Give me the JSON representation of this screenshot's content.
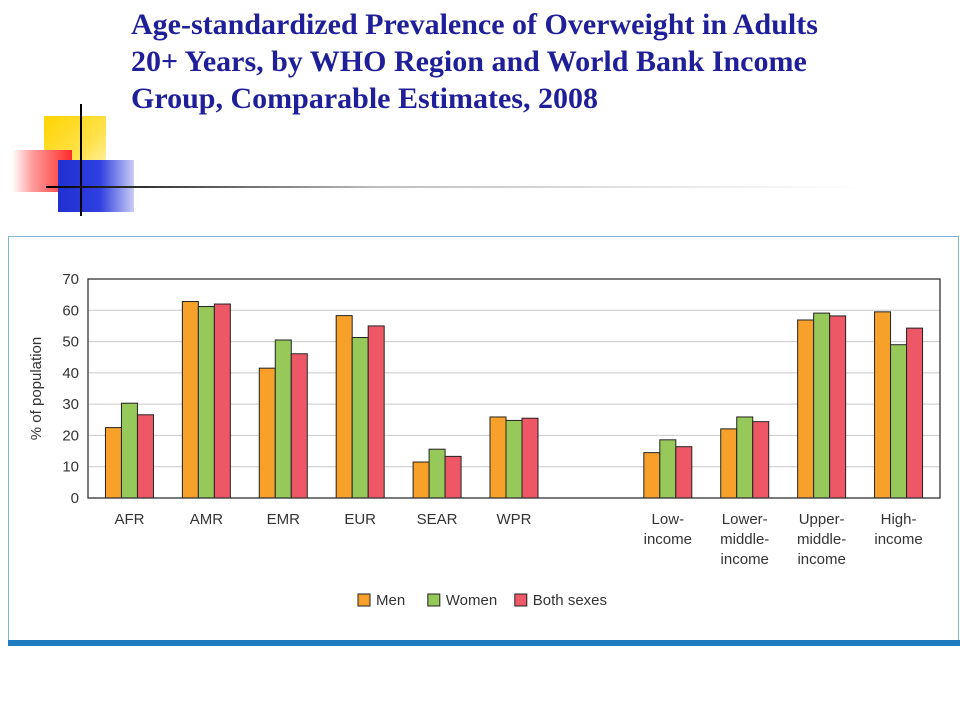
{
  "slide": {
    "title": "Age-standardized Prevalence of Overweight in Adults 20+ Years, by WHO Region and World Bank Income Group, Comparable Estimates, 2008"
  },
  "chart_data": {
    "type": "bar",
    "title": "",
    "ylabel": "% of population",
    "xlabel": "",
    "ylim": [
      0,
      70
    ],
    "yticks": [
      0,
      10,
      20,
      30,
      40,
      50,
      60,
      70
    ],
    "grid": true,
    "legend_position": "bottom-center",
    "categories": [
      [
        "AFR"
      ],
      [
        "AMR"
      ],
      [
        "EMR"
      ],
      [
        "EUR"
      ],
      [
        "SEAR"
      ],
      [
        "WPR"
      ],
      [],
      [
        "Low-",
        "income"
      ],
      [
        "Lower-",
        "middle-",
        "income"
      ],
      [
        "Upper-",
        "middle-",
        "income"
      ],
      [
        "High-",
        "income"
      ]
    ],
    "series": [
      {
        "name": "Men",
        "color": "#f7a12b",
        "values": [
          22.5,
          62.8,
          41.5,
          58.3,
          11.5,
          25.9,
          null,
          14.5,
          22.1,
          56.9,
          59.5
        ]
      },
      {
        "name": "Women",
        "color": "#96c85a",
        "values": [
          30.3,
          61.2,
          50.5,
          51.3,
          15.6,
          24.8,
          null,
          18.6,
          25.9,
          59.1,
          49.0
        ]
      },
      {
        "name": "Both sexes",
        "color": "#ee5866",
        "values": [
          26.6,
          62.0,
          46.1,
          55.0,
          13.3,
          25.5,
          null,
          16.4,
          24.4,
          58.2,
          54.3
        ]
      }
    ]
  }
}
